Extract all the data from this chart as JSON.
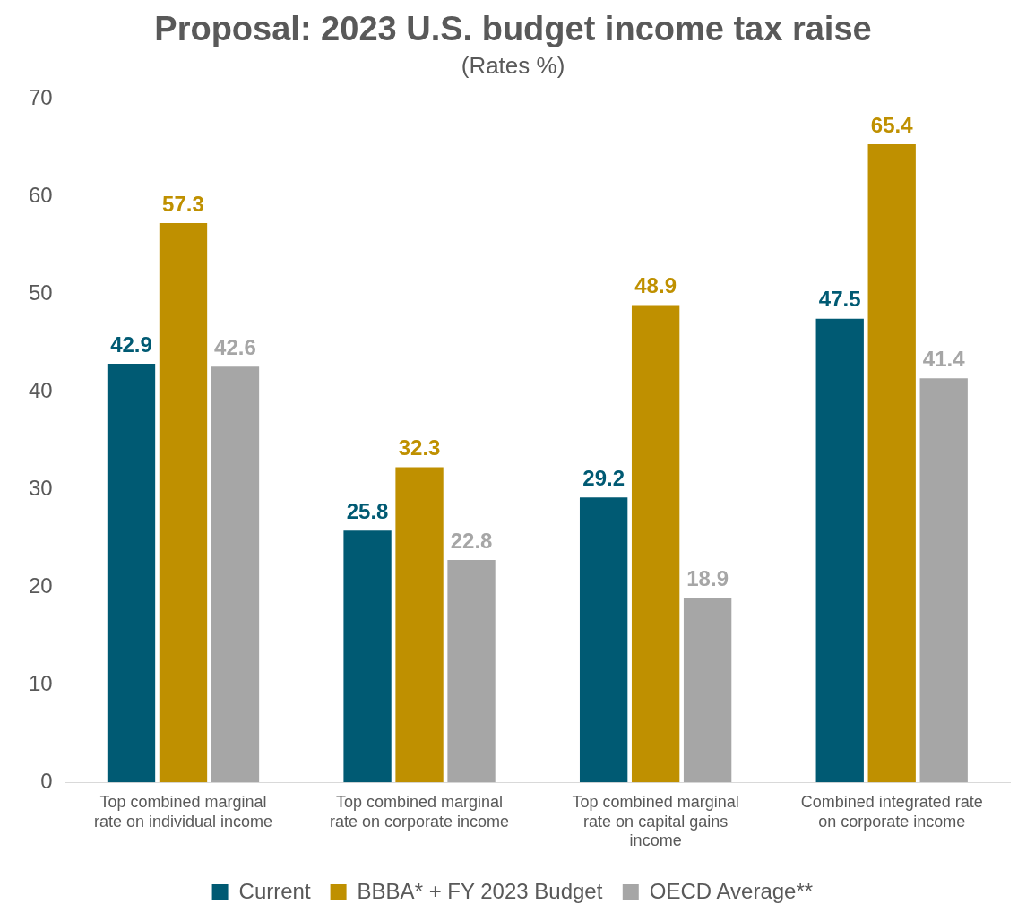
{
  "chart_data": {
    "type": "bar",
    "title": "Proposal: 2023 U.S. budget income tax raise",
    "subtitle": "(Rates %)",
    "categories": [
      "Top combined marginal rate on individual income",
      "Top combined marginal rate on corporate income",
      "Top combined marginal rate on capital gains income",
      "Combined integrated rate on corporate income"
    ],
    "series": [
      {
        "name": "Current",
        "color": "#005a73",
        "values": [
          42.9,
          25.8,
          29.2,
          47.5
        ]
      },
      {
        "name": "BBBA* + FY 2023 Budget",
        "color": "#bf9000",
        "values": [
          57.3,
          32.3,
          48.9,
          65.4
        ]
      },
      {
        "name": "OECD Average**",
        "color": "#a6a6a6",
        "values": [
          42.6,
          22.8,
          18.9,
          41.4
        ]
      }
    ],
    "ylim": [
      0,
      70
    ],
    "yticks": [
      0,
      10,
      20,
      30,
      40,
      50,
      60,
      70
    ],
    "grid": false,
    "legend": "bottom",
    "data_labels": true
  }
}
